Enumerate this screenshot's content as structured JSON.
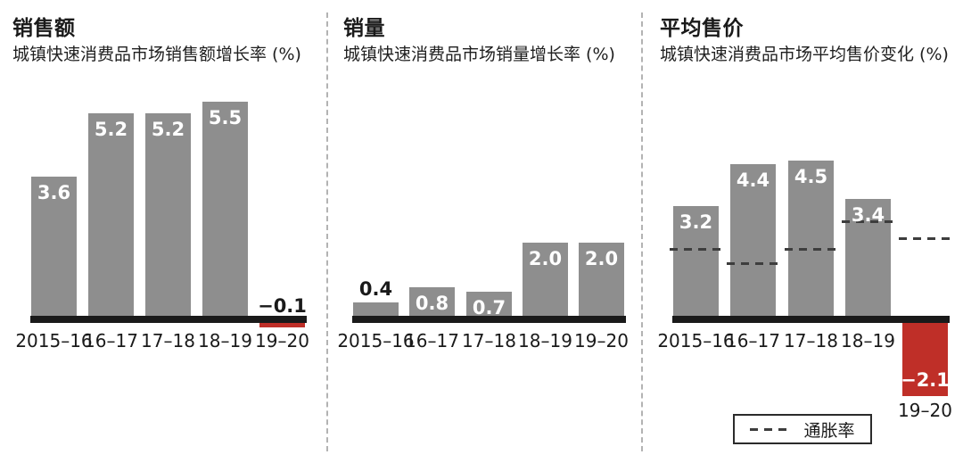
{
  "page": {
    "background": "#ffffff"
  },
  "colors": {
    "bar_gray": "#8e8e8e",
    "bar_negative_red": "#bf2f28",
    "axis_black": "#1a1a1a",
    "label_white": "#ffffff",
    "label_black": "#1a1a1a",
    "divider_gray": "#b3b3b3",
    "inflation_dash": "#3d3d3d"
  },
  "legend": {
    "label": "通胀率",
    "style": "dashed-line",
    "position": "bottom-right-of-third-chart"
  },
  "chart_data": [
    {
      "type": "bar",
      "title": "销售额",
      "subtitle": "城镇快速消费品市场销售额增长率 (%)",
      "categories": [
        "2015–16",
        "16–17",
        "17–18",
        "18–19",
        "19–20"
      ],
      "values": [
        3.6,
        5.2,
        5.2,
        5.5,
        -0.1
      ],
      "ylabel": "%",
      "y_axis_visible": false,
      "grid": false,
      "negative_color_used": true
    },
    {
      "type": "bar",
      "title": "销量",
      "subtitle": "城镇快速消费品市场销量增长率 (%)",
      "categories": [
        "2015–16",
        "16–17",
        "17–18",
        "18–19",
        "19–20"
      ],
      "values": [
        0.4,
        0.8,
        0.7,
        2.0,
        2.0
      ],
      "ylabel": "%",
      "y_axis_visible": false,
      "grid": false,
      "negative_color_used": false
    },
    {
      "type": "bar",
      "title": "平均售价",
      "subtitle": "城镇快速消费品市场平均售价变化 (%)",
      "categories": [
        "2015–16",
        "16–17",
        "17–18",
        "18–19",
        "19–20"
      ],
      "values": [
        3.2,
        4.4,
        4.5,
        3.4,
        -2.1
      ],
      "series": [
        {
          "name": "通胀率",
          "type": "dashed-line",
          "values": [
            2.0,
            1.6,
            2.0,
            2.8,
            2.3
          ],
          "note": "values estimated from dash heights"
        }
      ],
      "ylabel": "%",
      "y_axis_visible": false,
      "grid": false,
      "negative_color_used": true,
      "legend": {
        "label": "通胀率"
      }
    }
  ]
}
